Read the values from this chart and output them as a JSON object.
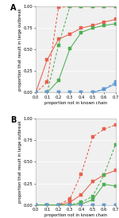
{
  "x": [
    0.0,
    0.1,
    0.2,
    0.3,
    0.4,
    0.5,
    0.6,
    0.7
  ],
  "panel_A": {
    "red_solid": [
      0.0,
      0.38,
      0.62,
      0.68,
      0.75,
      0.78,
      0.82,
      0.85
    ],
    "red_dashed": [
      0.0,
      0.12,
      0.99,
      1.0,
      1.0,
      1.0,
      1.0,
      1.0
    ],
    "green_solid": [
      0.0,
      0.0,
      0.14,
      0.51,
      0.7,
      0.75,
      0.78,
      0.8
    ],
    "green_dashed": [
      0.0,
      0.0,
      0.55,
      1.0,
      1.0,
      1.0,
      1.0,
      1.0
    ],
    "blue_solid": [
      0.0,
      0.0,
      0.0,
      0.0,
      0.0,
      0.0,
      0.04,
      0.1
    ],
    "blue_dashed": [
      0.0,
      0.0,
      0.0,
      0.0,
      0.0,
      0.0,
      0.04,
      0.12
    ]
  },
  "panel_B": {
    "red_solid": [
      0.0,
      0.0,
      0.0,
      0.03,
      0.12,
      0.27,
      0.35,
      0.4
    ],
    "red_dashed": [
      0.0,
      0.0,
      0.0,
      0.07,
      0.36,
      0.79,
      0.88,
      0.93
    ],
    "green_solid": [
      0.0,
      0.0,
      0.0,
      0.0,
      0.01,
      0.06,
      0.24,
      0.22
    ],
    "green_dashed": [
      0.0,
      0.0,
      0.0,
      0.0,
      0.03,
      0.1,
      0.35,
      0.7
    ],
    "blue_solid": [
      0.0,
      0.0,
      0.0,
      0.0,
      0.0,
      0.0,
      0.0,
      0.0
    ],
    "blue_dashed": [
      0.0,
      0.0,
      0.0,
      0.0,
      0.0,
      0.0,
      0.0,
      0.0
    ]
  },
  "colors": {
    "red": "#e8604c",
    "green": "#4caf50",
    "blue": "#5b9bd5"
  },
  "marker": "s",
  "markersize": 2.2,
  "linewidth": 0.75,
  "xlabel": "proportion not in known chain",
  "ylabel": "proportion that result in large outbreak",
  "xlim": [
    0.0,
    0.7
  ],
  "ylim": [
    0.0,
    1.0
  ],
  "xticks": [
    0.0,
    0.1,
    0.2,
    0.3,
    0.4,
    0.5,
    0.6,
    0.7
  ],
  "yticks": [
    0.0,
    0.25,
    0.5,
    0.75,
    1.0
  ],
  "bg_color": "#f0f0f0",
  "label_A": "A",
  "label_B": "B",
  "label_fontsize": 7,
  "tick_fontsize": 3.8,
  "axis_label_fontsize": 3.8
}
